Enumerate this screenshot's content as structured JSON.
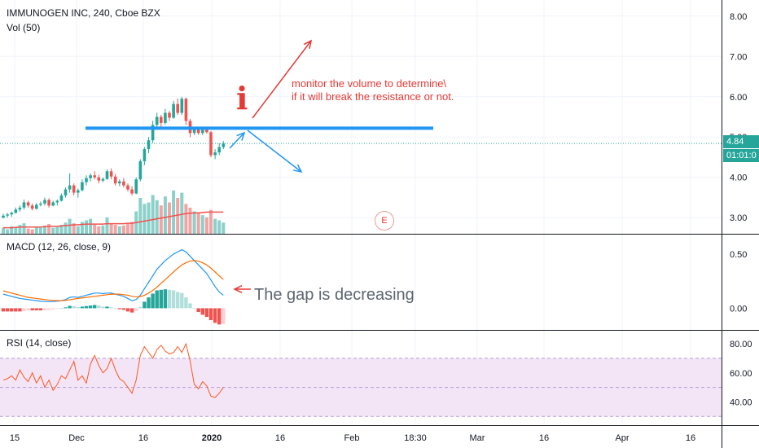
{
  "legend": {
    "symbol_title": "IMMUNOGEN INC, 240, Cboe BZX",
    "volume_title": "Vol (50)",
    "macd_title": "MACD (12, 26, close, 9)",
    "rsi_title": "RSI (14, close)"
  },
  "price_badge": {
    "price": "4.84",
    "countdown": "01:01:0"
  },
  "annotations": {
    "volume_note_line1": "monitor the volume to determine\\",
    "volume_note_line2": "if it will break the resistance or not.",
    "macd_note": "The gap is decreasing",
    "info_mark": "i",
    "earnings_marker": "E"
  },
  "colors": {
    "up": "#26a69a",
    "down": "#ef5350",
    "resistance": "#2196f3",
    "note": "#e53935",
    "arrow_up": "#e53935",
    "arrow_down": "#2196f3",
    "macd_line": "#2196f3",
    "signal_line": "#ff6d00",
    "rsi_line": "#ff5722",
    "rsi_band": "#f3e5f5",
    "current_price": "#26a69a"
  },
  "chart_data": [
    {
      "type": "candlestick",
      "panel": "price",
      "ylim": [
        2.6,
        8.4
      ],
      "y_ticks": [
        "8.00",
        "7.00",
        "6.00",
        "5.00",
        "4.00",
        "3.00"
      ],
      "x_ticks": [
        "15",
        "Dec",
        "16",
        "2020",
        "16",
        "Feb",
        "18:30",
        "Mar",
        "16",
        "Apr",
        "16"
      ],
      "current_price": 4.84,
      "resistance_level": 5.22,
      "candles": [
        [
          3.0,
          3.1,
          2.98,
          3.05
        ],
        [
          3.05,
          3.12,
          3.0,
          3.08
        ],
        [
          3.08,
          3.15,
          3.02,
          3.12
        ],
        [
          3.12,
          3.25,
          3.1,
          3.2
        ],
        [
          3.2,
          3.3,
          3.15,
          3.25
        ],
        [
          3.25,
          3.45,
          3.2,
          3.38
        ],
        [
          3.38,
          3.42,
          3.25,
          3.3
        ],
        [
          3.3,
          3.35,
          3.18,
          3.22
        ],
        [
          3.22,
          3.36,
          3.2,
          3.32
        ],
        [
          3.32,
          3.4,
          3.28,
          3.35
        ],
        [
          3.35,
          3.5,
          3.3,
          3.44
        ],
        [
          3.44,
          3.48,
          3.25,
          3.3
        ],
        [
          3.3,
          3.42,
          3.28,
          3.38
        ],
        [
          3.38,
          3.45,
          3.3,
          3.42
        ],
        [
          3.42,
          3.6,
          3.4,
          3.55
        ],
        [
          3.55,
          3.75,
          3.5,
          3.7
        ],
        [
          3.7,
          4.1,
          3.62,
          3.8
        ],
        [
          3.8,
          3.85,
          3.55,
          3.62
        ],
        [
          3.62,
          3.72,
          3.5,
          3.68
        ],
        [
          3.68,
          3.95,
          3.65,
          3.88
        ],
        [
          3.88,
          4.05,
          3.8,
          3.98
        ],
        [
          3.98,
          4.1,
          3.9,
          4.05
        ],
        [
          4.05,
          4.15,
          3.95,
          4.0
        ],
        [
          4.0,
          4.06,
          3.85,
          3.92
        ],
        [
          3.92,
          4.0,
          3.88,
          3.96
        ],
        [
          3.96,
          4.2,
          3.94,
          4.15
        ],
        [
          4.15,
          4.22,
          3.95,
          4.02
        ],
        [
          4.02,
          4.08,
          3.8,
          3.85
        ],
        [
          3.85,
          3.95,
          3.78,
          3.9
        ],
        [
          3.9,
          3.98,
          3.75,
          3.8
        ],
        [
          3.8,
          3.85,
          3.65,
          3.7
        ],
        [
          3.7,
          3.78,
          3.55,
          3.6
        ],
        [
          3.6,
          4.0,
          3.58,
          3.95
        ],
        [
          3.95,
          4.45,
          3.9,
          4.4
        ],
        [
          4.4,
          4.75,
          4.3,
          4.7
        ],
        [
          4.7,
          5.0,
          4.6,
          4.92
        ],
        [
          4.92,
          5.4,
          4.85,
          5.3
        ],
        [
          5.3,
          5.6,
          5.2,
          5.5
        ],
        [
          5.5,
          5.55,
          5.25,
          5.35
        ],
        [
          5.35,
          5.7,
          5.3,
          5.6
        ],
        [
          5.6,
          5.65,
          5.4,
          5.48
        ],
        [
          5.48,
          5.9,
          5.45,
          5.82
        ],
        [
          5.82,
          5.95,
          5.55,
          5.6
        ],
        [
          5.6,
          6.0,
          5.55,
          5.95
        ],
        [
          5.95,
          5.98,
          5.3,
          5.4
        ],
        [
          5.4,
          5.45,
          5.0,
          5.1
        ],
        [
          5.1,
          5.25,
          5.05,
          5.2
        ],
        [
          5.2,
          5.22,
          5.05,
          5.1
        ],
        [
          5.1,
          5.22,
          5.05,
          5.18
        ],
        [
          5.18,
          5.2,
          5.08,
          5.12
        ],
        [
          5.12,
          5.15,
          4.5,
          4.55
        ],
        [
          4.55,
          4.7,
          4.45,
          4.62
        ],
        [
          4.62,
          4.85,
          4.55,
          4.75
        ],
        [
          4.75,
          4.9,
          4.7,
          4.84
        ]
      ]
    },
    {
      "type": "bar",
      "panel": "volume",
      "values": [
        8,
        6,
        10,
        9,
        12,
        14,
        7,
        6,
        9,
        8,
        11,
        13,
        8,
        9,
        12,
        15,
        20,
        14,
        10,
        16,
        18,
        20,
        12,
        10,
        11,
        22,
        14,
        12,
        10,
        11,
        13,
        16,
        30,
        48,
        40,
        42,
        52,
        45,
        38,
        50,
        42,
        58,
        48,
        55,
        40,
        35,
        30,
        28,
        25,
        22,
        32,
        20,
        18,
        15
      ],
      "ma_values": [
        8,
        8,
        8,
        8.5,
        9,
        9,
        9,
        9,
        9,
        9,
        9.5,
        10,
        10,
        10,
        10.5,
        11,
        11.5,
        12,
        12,
        12.5,
        13,
        13,
        13,
        13,
        13,
        13.5,
        13.5,
        13.5,
        13.5,
        13.5,
        14,
        14,
        15,
        16,
        17,
        18,
        19,
        20,
        21,
        22,
        23,
        24,
        25,
        26,
        27,
        27.5,
        28,
        28,
        28.5,
        29,
        29,
        29,
        29,
        29
      ]
    },
    {
      "type": "line",
      "panel": "macd",
      "y_ticks": [
        "0.50",
        "0.00"
      ],
      "ylim": [
        -0.2,
        0.68
      ],
      "macd": [
        0.13,
        0.12,
        0.11,
        0.1,
        0.09,
        0.085,
        0.08,
        0.075,
        0.07,
        0.065,
        0.062,
        0.06,
        0.062,
        0.065,
        0.07,
        0.08,
        0.1,
        0.105,
        0.1,
        0.11,
        0.12,
        0.13,
        0.14,
        0.14,
        0.135,
        0.14,
        0.14,
        0.13,
        0.12,
        0.11,
        0.09,
        0.07,
        0.08,
        0.12,
        0.18,
        0.24,
        0.3,
        0.36,
        0.4,
        0.44,
        0.47,
        0.5,
        0.52,
        0.54,
        0.52,
        0.48,
        0.44,
        0.4,
        0.36,
        0.32,
        0.26,
        0.2,
        0.15,
        0.12
      ],
      "signal": [
        0.16,
        0.15,
        0.14,
        0.13,
        0.12,
        0.11,
        0.1,
        0.095,
        0.09,
        0.085,
        0.08,
        0.075,
        0.072,
        0.07,
        0.07,
        0.072,
        0.078,
        0.085,
        0.09,
        0.095,
        0.1,
        0.105,
        0.11,
        0.115,
        0.12,
        0.125,
        0.13,
        0.13,
        0.13,
        0.125,
        0.12,
        0.11,
        0.105,
        0.107,
        0.12,
        0.14,
        0.165,
        0.195,
        0.23,
        0.265,
        0.3,
        0.335,
        0.37,
        0.4,
        0.42,
        0.435,
        0.44,
        0.435,
        0.42,
        0.4,
        0.37,
        0.335,
        0.3,
        0.265
      ],
      "histogram": [
        -0.03,
        -0.03,
        -0.03,
        -0.03,
        -0.03,
        -0.025,
        -0.02,
        -0.02,
        -0.02,
        -0.02,
        -0.018,
        -0.015,
        -0.01,
        -0.005,
        0.0,
        0.008,
        0.022,
        0.02,
        0.01,
        0.015,
        0.02,
        0.025,
        0.03,
        0.025,
        0.015,
        0.015,
        0.01,
        0.0,
        -0.01,
        -0.015,
        -0.03,
        -0.04,
        -0.025,
        0.013,
        0.06,
        0.1,
        0.135,
        0.165,
        0.17,
        0.175,
        0.17,
        0.165,
        0.15,
        0.14,
        0.1,
        0.045,
        0.0,
        -0.035,
        -0.06,
        -0.08,
        -0.11,
        -0.135,
        -0.15,
        -0.145
      ]
    },
    {
      "type": "line",
      "panel": "rsi",
      "y_ticks": [
        "80.00",
        "60.00",
        "40.00"
      ],
      "ylim": [
        24,
        89
      ],
      "band": [
        30,
        70
      ],
      "values": [
        55,
        56,
        58,
        55,
        62,
        57,
        54,
        60,
        53,
        58,
        50,
        55,
        48,
        52,
        58,
        56,
        62,
        68,
        55,
        58,
        53,
        66,
        72,
        65,
        60,
        63,
        70,
        62,
        56,
        54,
        50,
        46,
        55,
        72,
        78,
        74,
        70,
        76,
        79,
        75,
        73,
        74,
        78,
        74,
        80,
        68,
        52,
        49,
        54,
        51,
        44,
        43,
        46,
        50
      ]
    }
  ]
}
